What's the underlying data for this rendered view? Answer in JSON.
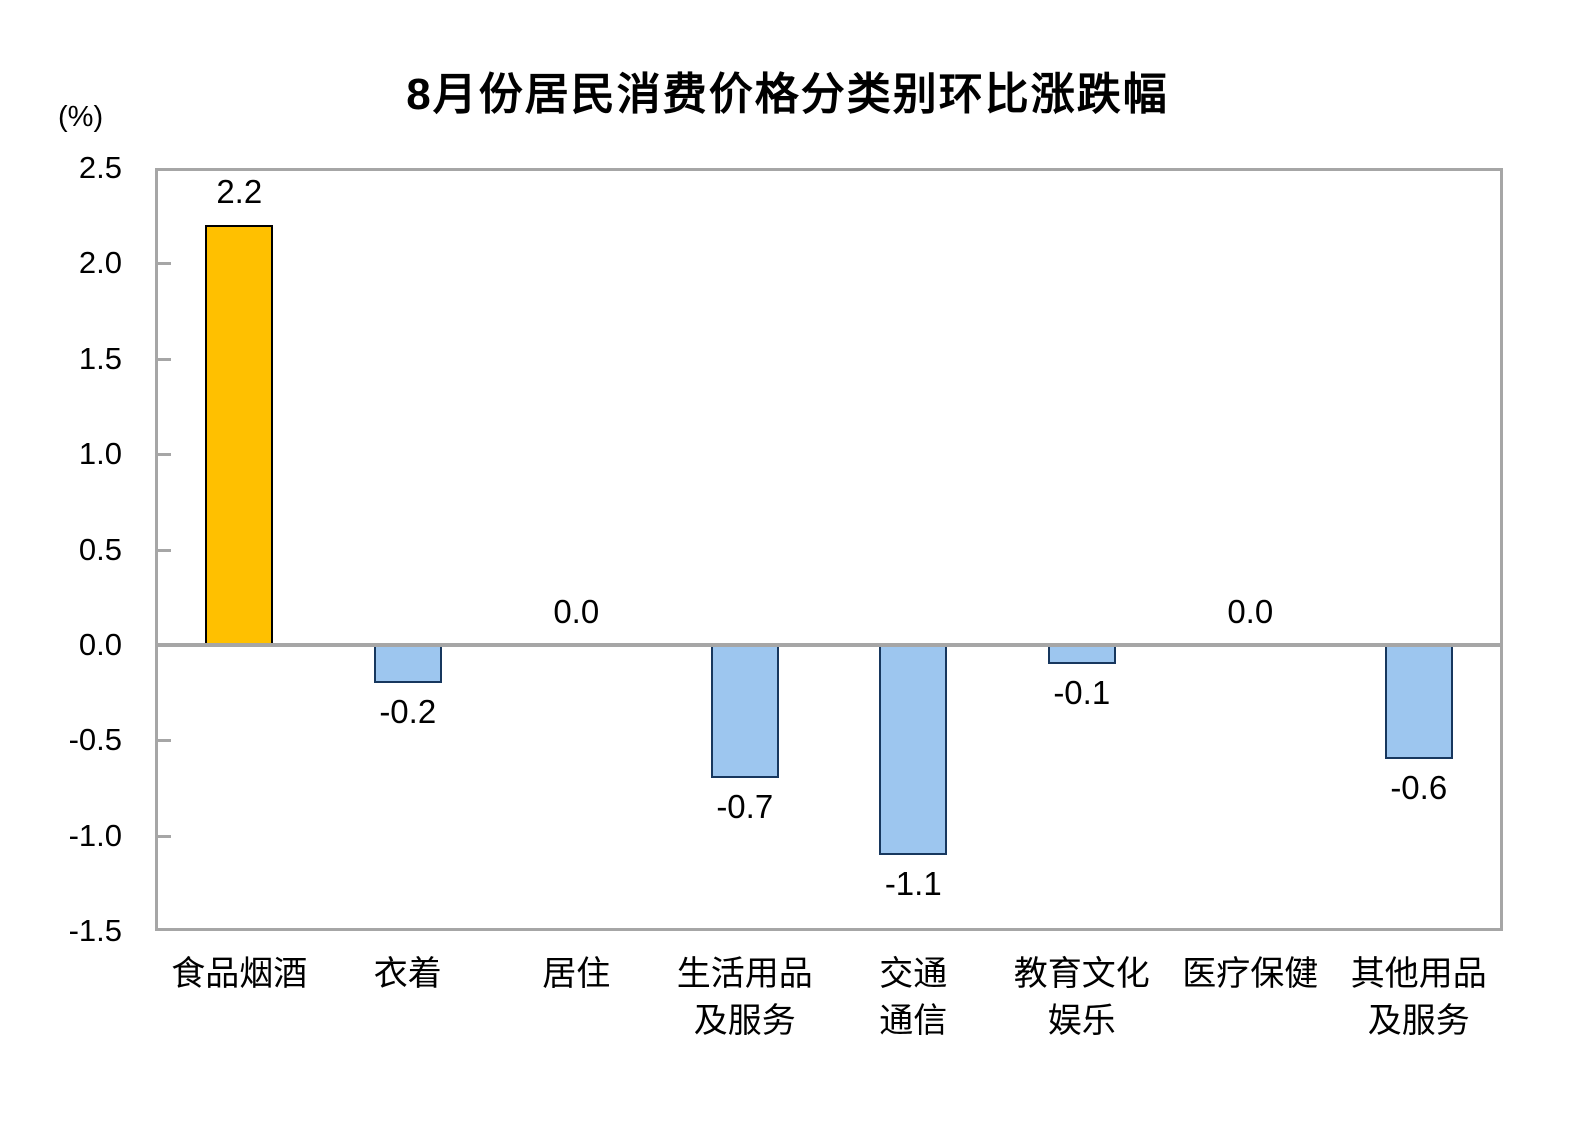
{
  "chart_data": {
    "type": "bar",
    "title": "8月份居民消费价格分类别环比涨跌幅",
    "unit_label": "(%)",
    "xlabel": "",
    "ylabel": "(%)",
    "categories": [
      "食品烟酒",
      "衣着",
      "居住",
      "生活用品及服务",
      "交通通信",
      "教育文化娱乐",
      "医疗保健",
      "其他用品及服务"
    ],
    "category_display_lines": [
      [
        "食品烟酒"
      ],
      [
        "衣着"
      ],
      [
        "居住"
      ],
      [
        "生活用品",
        "及服务"
      ],
      [
        "交通",
        "通信"
      ],
      [
        "教育文化",
        "娱乐"
      ],
      [
        "医疗保健"
      ],
      [
        "其他用品",
        "及服务"
      ]
    ],
    "values": [
      2.2,
      -0.2,
      0.0,
      -0.7,
      -1.1,
      -0.1,
      0.0,
      -0.6
    ],
    "value_labels": [
      "2.2",
      "-0.2",
      "0.0",
      "-0.7",
      "-1.1",
      "-0.1",
      "0.0",
      "-0.6"
    ],
    "bar_fill_colors": [
      "#FFC000",
      "#9DC6EF",
      "#9DC6EF",
      "#9DC6EF",
      "#9DC6EF",
      "#9DC6EF",
      "#9DC6EF",
      "#9DC6EF"
    ],
    "bar_border_colors": [
      "#000000",
      "#17375E",
      "#17375E",
      "#17375E",
      "#17375E",
      "#17375E",
      "#17375E",
      "#17375E"
    ],
    "ylim": [
      -1.5,
      2.5
    ],
    "yticks": [
      2.5,
      2.0,
      1.5,
      1.0,
      0.5,
      0.0,
      -0.5,
      -1.0,
      -1.5
    ],
    "ytick_labels": [
      "2.5",
      "2.0",
      "1.5",
      "1.0",
      "0.5",
      "0.0",
      "-0.5",
      "-1.0",
      "-1.5"
    ],
    "grid": false,
    "legend": "none",
    "axis_frame_color": "#A6A6A6",
    "zero_line_color": "#A6A6A6",
    "text_color": "#000000",
    "background_color": "#FFFFFF"
  }
}
